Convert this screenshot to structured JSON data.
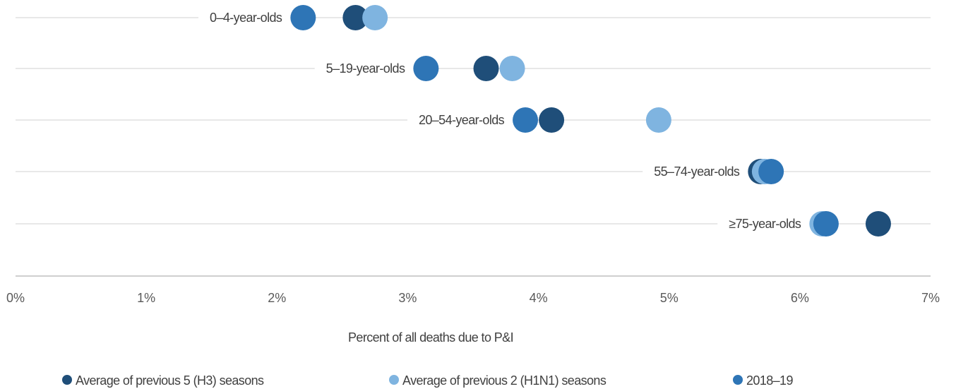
{
  "chart_data": {
    "type": "scatter",
    "title": "",
    "xlabel": "Percent of all deaths due to P&I",
    "ylabel": "",
    "xlim": [
      0,
      7
    ],
    "x_ticks": [
      "0%",
      "1%",
      "2%",
      "3%",
      "4%",
      "5%",
      "6%",
      "7%"
    ],
    "categories": [
      "0–4-year-olds",
      "5–19-year-olds",
      "20–54-year-olds",
      "55–74-year-olds",
      "≥75-year-olds"
    ],
    "series": [
      {
        "name": "Average of previous 5 (H3) seasons",
        "color": "#1f4e79",
        "values": [
          2.6,
          3.6,
          4.1,
          5.7,
          6.6
        ]
      },
      {
        "name": "Average of previous 2 (H1N1) seasons",
        "color": "#7fb4e0",
        "values": [
          2.75,
          3.8,
          4.92,
          5.73,
          6.17
        ]
      },
      {
        "name": "2018–19",
        "color": "#2e75b6",
        "values": [
          2.2,
          3.14,
          3.9,
          5.78,
          6.2
        ]
      }
    ],
    "grid": false,
    "legend_position": "bottom"
  }
}
